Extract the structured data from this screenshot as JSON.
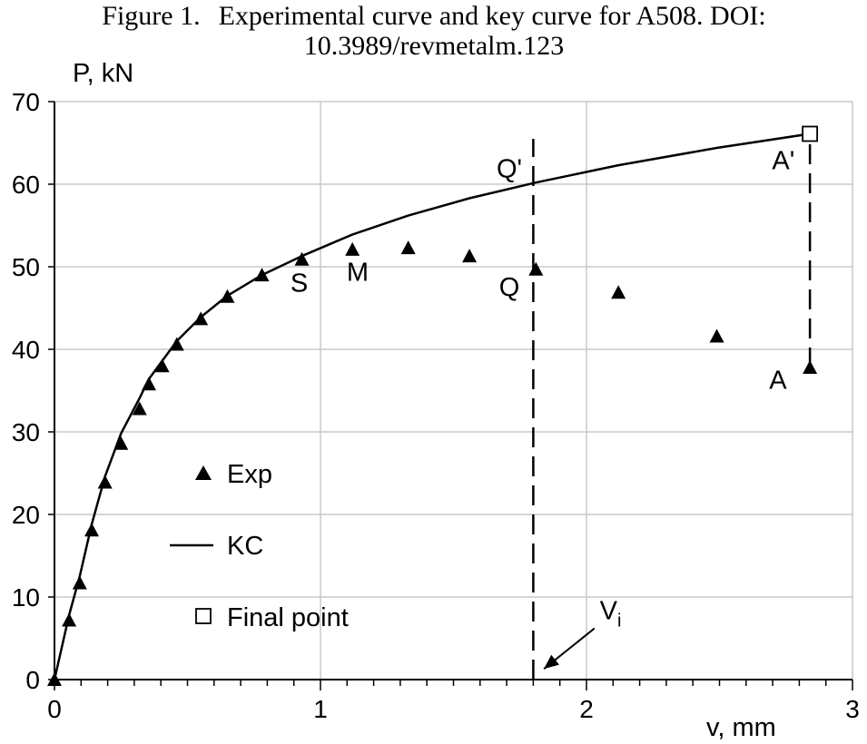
{
  "figure": {
    "label": "Figure 1.",
    "caption_line1": "Experimental curve and key curve for A508. DOI:",
    "caption_line2": "10.3989/revmetalm.123"
  },
  "chart_data": {
    "type": "scatter",
    "xlabel": "v, mm",
    "ylabel": "P, kN",
    "xlim": [
      0,
      3
    ],
    "ylim": [
      0,
      70
    ],
    "x_ticks": [
      0,
      1,
      2,
      3
    ],
    "y_ticks": [
      0,
      10,
      20,
      30,
      40,
      50,
      60,
      70
    ],
    "grid": true,
    "legend_position": "left-center",
    "series": [
      {
        "name": "Exp",
        "marker": "filled-triangle",
        "points": [
          {
            "x": 0.0,
            "y": 0.0
          },
          {
            "x": 0.055,
            "y": 7.2
          },
          {
            "x": 0.095,
            "y": 11.7
          },
          {
            "x": 0.14,
            "y": 18.1
          },
          {
            "x": 0.19,
            "y": 23.9
          },
          {
            "x": 0.25,
            "y": 28.6
          },
          {
            "x": 0.32,
            "y": 32.8
          },
          {
            "x": 0.355,
            "y": 35.8
          },
          {
            "x": 0.405,
            "y": 38.0
          },
          {
            "x": 0.46,
            "y": 40.6
          },
          {
            "x": 0.55,
            "y": 43.7
          },
          {
            "x": 0.65,
            "y": 46.4
          },
          {
            "x": 0.78,
            "y": 49.0
          },
          {
            "x": 0.93,
            "y": 50.9
          },
          {
            "x": 1.12,
            "y": 52.1
          },
          {
            "x": 1.33,
            "y": 52.3
          },
          {
            "x": 1.56,
            "y": 51.3
          },
          {
            "x": 1.81,
            "y": 49.7
          },
          {
            "x": 2.12,
            "y": 46.9
          },
          {
            "x": 2.49,
            "y": 41.6
          },
          {
            "x": 2.84,
            "y": 37.8
          }
        ]
      },
      {
        "name": "KC",
        "style": "solid-line",
        "points": [
          {
            "x": 0.0,
            "y": 0.0
          },
          {
            "x": 0.055,
            "y": 7.8
          },
          {
            "x": 0.095,
            "y": 12.5
          },
          {
            "x": 0.14,
            "y": 18.8
          },
          {
            "x": 0.19,
            "y": 24.6
          },
          {
            "x": 0.25,
            "y": 29.8
          },
          {
            "x": 0.32,
            "y": 34.1
          },
          {
            "x": 0.355,
            "y": 36.4
          },
          {
            "x": 0.405,
            "y": 38.6
          },
          {
            "x": 0.46,
            "y": 41.0
          },
          {
            "x": 0.55,
            "y": 43.9
          },
          {
            "x": 0.65,
            "y": 46.5
          },
          {
            "x": 0.78,
            "y": 49.0
          },
          {
            "x": 0.93,
            "y": 51.3
          },
          {
            "x": 1.12,
            "y": 53.9
          },
          {
            "x": 1.33,
            "y": 56.2
          },
          {
            "x": 1.56,
            "y": 58.3
          },
          {
            "x": 1.81,
            "y": 60.2
          },
          {
            "x": 2.12,
            "y": 62.3
          },
          {
            "x": 2.49,
            "y": 64.4
          },
          {
            "x": 2.84,
            "y": 66.1
          }
        ]
      },
      {
        "name": "Final point",
        "marker": "open-square",
        "points": [
          {
            "x": 2.84,
            "y": 66.1
          }
        ]
      }
    ],
    "vlines": [
      {
        "x": 1.8,
        "y_from": 0,
        "y_to": 65.5,
        "style": "dashed"
      },
      {
        "x": 2.84,
        "y_from": 37.8,
        "y_to": 66.1,
        "style": "dashed"
      }
    ],
    "annotations": [
      {
        "text": "S",
        "x": 0.92,
        "y": 47.0
      },
      {
        "text": "M",
        "x": 1.14,
        "y": 48.3
      },
      {
        "text": "Q",
        "x": 1.71,
        "y": 46.5
      },
      {
        "text": "Q'",
        "x": 1.71,
        "y": 60.8
      },
      {
        "text": "A'",
        "x": 2.74,
        "y": 61.8
      },
      {
        "text": "A",
        "x": 2.72,
        "y": 35.2
      }
    ],
    "arrow_annotation": {
      "text": "V",
      "subscript": "i",
      "text_x": 2.05,
      "text_y": 7.3,
      "arrow_from": {
        "x": 2.03,
        "y": 6.2
      },
      "arrow_to": {
        "x": 1.84,
        "y": 1.3
      }
    },
    "legend": [
      {
        "label": "Exp",
        "marker": "filled-triangle"
      },
      {
        "label": "KC",
        "marker": "line"
      },
      {
        "label": "Final point",
        "marker": "open-square"
      }
    ]
  }
}
